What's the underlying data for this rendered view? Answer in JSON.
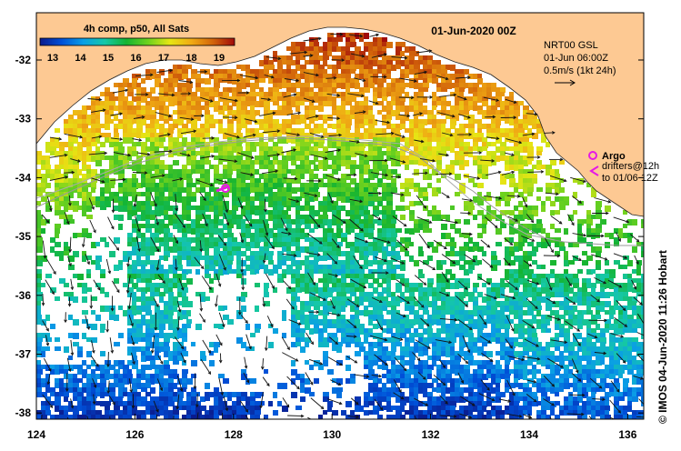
{
  "map": {
    "date_title": "01-Jun-2020 00Z",
    "x_ticks": [
      "124",
      "126",
      "128",
      "130",
      "132",
      "134",
      "136"
    ],
    "y_ticks": [
      "-32",
      "-33",
      "-34",
      "-35",
      "-36",
      "-37",
      "-38"
    ],
    "land_color": "#fdc993"
  },
  "colorbar": {
    "title": "4h comp, p50, All Sats",
    "ticks": [
      "13",
      "14",
      "15",
      "16",
      "17",
      "18",
      "19"
    ],
    "colormap": [
      "#0a1a8c",
      "#0050d8",
      "#0a9ee6",
      "#15c8a8",
      "#14b432",
      "#6ed21e",
      "#e6e614",
      "#f0aa14",
      "#d2640a",
      "#a00a0a"
    ]
  },
  "current_info": {
    "model": "NRT00 GSL",
    "time": "01-Jun 06:00Z",
    "scale": "0.5m/s (1kt 24h)"
  },
  "legend": {
    "argo": "Argo",
    "drifters_line1": "drifters@12h",
    "drifters_line2": "to 01/06 12Z",
    "argo_color": "#e619e6"
  },
  "credit": "© IMOS 04-Jun-2020 11:26 Hobart"
}
